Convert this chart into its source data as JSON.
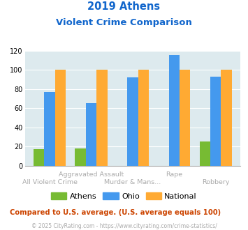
{
  "title_line1": "2019 Athens",
  "title_line2": "Violent Crime Comparison",
  "athens": [
    17,
    18,
    0,
    0,
    25
  ],
  "ohio": [
    77,
    65,
    92,
    115,
    93
  ],
  "national": [
    100,
    100,
    100,
    100,
    100
  ],
  "athens_color": "#77bb33",
  "ohio_color": "#4499ee",
  "national_color": "#ffaa33",
  "bg_color": "#ddeaee",
  "title_color": "#1166cc",
  "ylim": [
    0,
    120
  ],
  "yticks": [
    0,
    20,
    40,
    60,
    80,
    100,
    120
  ],
  "footnote": "Compared to U.S. average. (U.S. average equals 100)",
  "copyright": "© 2025 CityRating.com - https://www.cityrating.com/crime-statistics/",
  "legend_labels": [
    "Athens",
    "Ohio",
    "National"
  ],
  "top_labels": [
    "",
    "Aggravated Assault",
    "",
    "Rape",
    ""
  ],
  "bottom_labels": [
    "All Violent Crime",
    "",
    "Murder & Mans...",
    "",
    "Robbery"
  ]
}
